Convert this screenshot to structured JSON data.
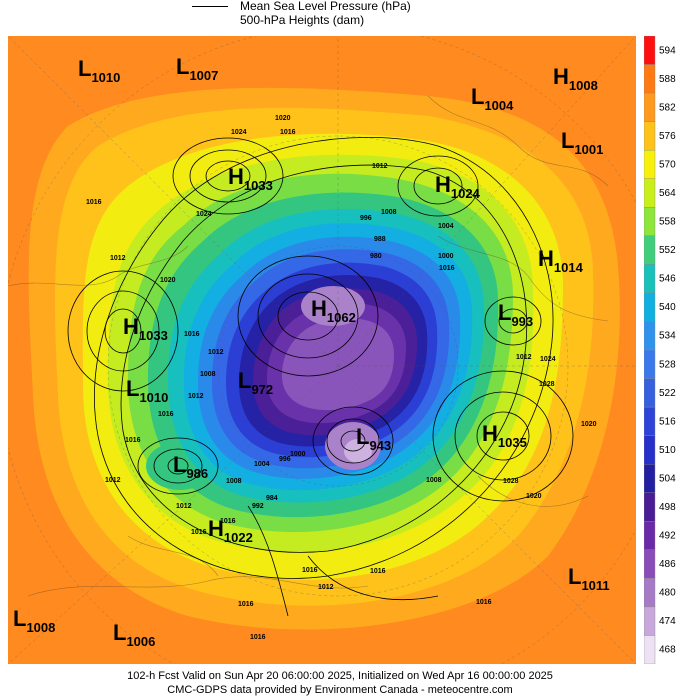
{
  "header": {
    "line1": "Mean Sea Level Pressure (hPa)",
    "line2": "500-hPa Heights (dam)"
  },
  "colorbar": {
    "levels": [
      "594",
      "588",
      "582",
      "576",
      "570",
      "564",
      "558",
      "552",
      "546",
      "540",
      "534",
      "528",
      "522",
      "516",
      "510",
      "504",
      "498",
      "492",
      "486",
      "480",
      "474",
      "468"
    ],
    "colors": [
      "#ff1010",
      "#ff7a12",
      "#ff9a1e",
      "#ffc21a",
      "#f7f00a",
      "#c9ef1a",
      "#8ee63a",
      "#3fcf7a",
      "#19c1bb",
      "#11b0e0",
      "#2f93ee",
      "#3a78ec",
      "#3660e0",
      "#2e44d8",
      "#2730c8",
      "#2220a0",
      "#4a1d96",
      "#6a2aa8",
      "#8a4cb8",
      "#a77ac8",
      "#c8a8dc",
      "#ece2f4"
    ]
  },
  "map": {
    "colors": {
      "sea_high": "#ff8a1f",
      "h582": "#ffaa1e",
      "h576": "#ffc21a",
      "h570": "#f2ec10",
      "h564": "#c4ec20",
      "h558": "#79dd45",
      "h552": "#34c681",
      "h546": "#17bfbf",
      "h540": "#13aee2",
      "h534": "#2a8aea",
      "h528": "#3468e6",
      "h516": "#2c3fd4",
      "h504": "#2622a6",
      "h498": "#4a1f98",
      "h492": "#6a32aa",
      "h486": "#8a55ba",
      "h480": "#a982ca",
      "h474": "#cdb2e0"
    },
    "centers": [
      {
        "type": "L",
        "value": "1010"
      },
      {
        "type": "L",
        "value": "1007"
      },
      {
        "type": "L",
        "value": "1004"
      },
      {
        "type": "H",
        "value": "1008"
      },
      {
        "type": "L",
        "value": "1001"
      },
      {
        "type": "H",
        "value": "1033"
      },
      {
        "type": "H",
        "value": "1024"
      },
      {
        "type": "H",
        "value": "1014"
      },
      {
        "type": "H",
        "value": "1062"
      },
      {
        "type": "L",
        "value": "993"
      },
      {
        "type": "H",
        "value": "1033"
      },
      {
        "type": "L",
        "value": "1010"
      },
      {
        "type": "L",
        "value": "972"
      },
      {
        "type": "L",
        "value": "943"
      },
      {
        "type": "H",
        "value": "1035"
      },
      {
        "type": "L",
        "value": "986"
      },
      {
        "type": "H",
        "value": "1022"
      },
      {
        "type": "L",
        "value": "1011"
      },
      {
        "type": "L",
        "value": "1008"
      },
      {
        "type": "L",
        "value": "1006"
      }
    ],
    "isobar_labels": [
      "1024",
      "1020",
      "1016",
      "1012",
      "1008",
      "996",
      "988",
      "980",
      "1016",
      "1012",
      "1020",
      "1016",
      "1012",
      "1008",
      "1016",
      "1012",
      "1024",
      "1004",
      "1000",
      "1016",
      "1012",
      "1024",
      "1028",
      "1020",
      "1012",
      "1016",
      "1008",
      "1004",
      "1012",
      "1016",
      "1016",
      "992",
      "996",
      "1000",
      "984",
      "1016",
      "1012",
      "1016",
      "1016",
      "1008",
      "1020",
      "1028",
      "1016",
      "1016"
    ]
  },
  "footer": {
    "line1": "102-h Fcst Valid on Sun Apr 20 06:00:00 2025, Initialized on Wed Apr 16 00:00:00 2025",
    "line2": "CMC-GDPS data provided by Environment Canada - meteocentre.com"
  }
}
